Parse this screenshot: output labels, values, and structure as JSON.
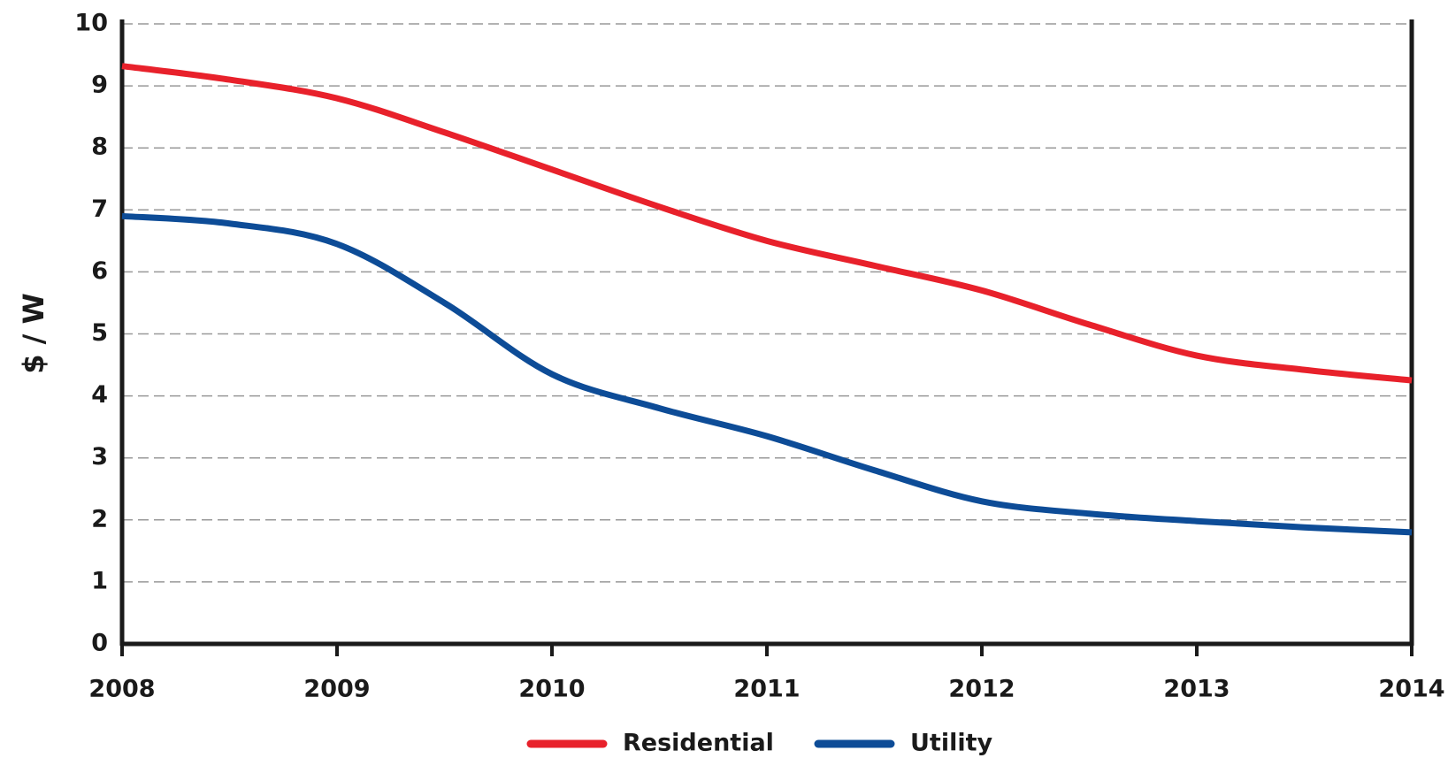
{
  "chart_data": {
    "type": "line",
    "ylabel": "$ / W",
    "x": [
      2008,
      2008.5,
      2009,
      2009.5,
      2010,
      2010.5,
      2011,
      2011.5,
      2012,
      2012.5,
      2013,
      2013.5,
      2014
    ],
    "series": [
      {
        "name": "Residential",
        "color": "#e8212b",
        "values": [
          9.32,
          9.1,
          8.8,
          8.25,
          7.65,
          7.05,
          6.5,
          6.1,
          5.7,
          5.15,
          4.65,
          4.42,
          4.25
        ]
      },
      {
        "name": "Utility",
        "color": "#0d4c97",
        "values": [
          6.9,
          6.78,
          6.45,
          5.5,
          4.35,
          3.8,
          3.35,
          2.8,
          2.3,
          2.1,
          1.98,
          1.88,
          1.8
        ]
      }
    ],
    "xlim": [
      2008,
      2014
    ],
    "xticks": [
      2008,
      2009,
      2010,
      2011,
      2012,
      2013,
      2014
    ],
    "ylim": [
      0,
      10
    ],
    "yticks": [
      0,
      1,
      2,
      3,
      4,
      5,
      6,
      7,
      8,
      9,
      10
    ],
    "grid": true,
    "legend": "bottom"
  }
}
